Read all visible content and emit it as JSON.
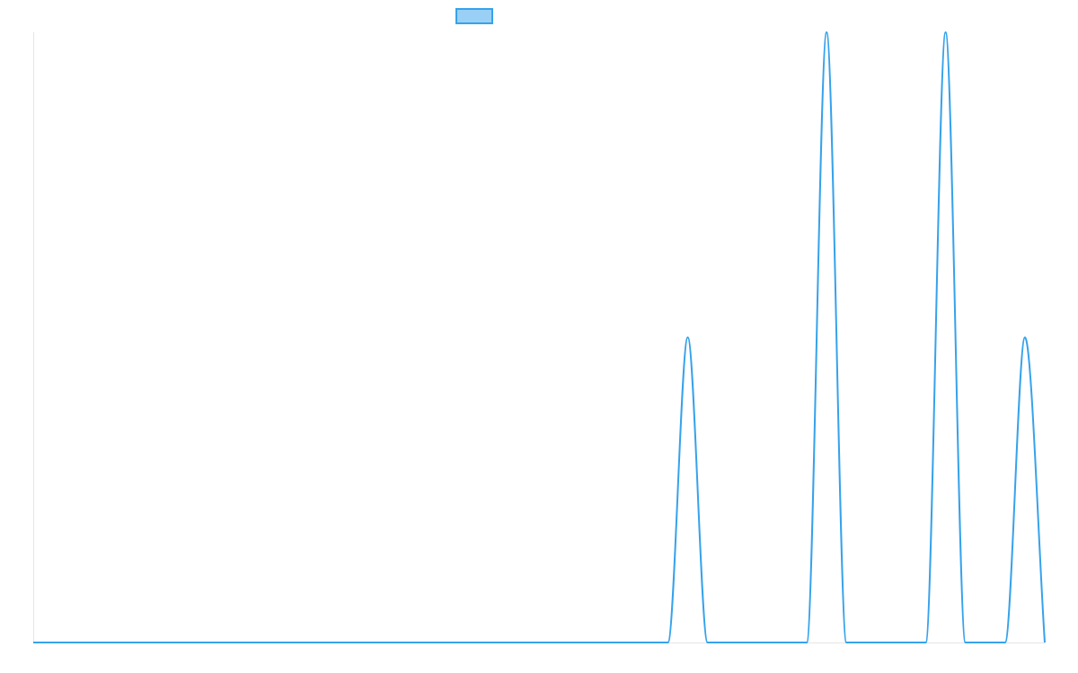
{
  "chart_data": {
    "type": "line",
    "categories": [
      null,
      null,
      null,
      null,
      null,
      null,
      null,
      null,
      null,
      null,
      null,
      null,
      null,
      null,
      null,
      null,
      null,
      null,
      null,
      null,
      null,
      null,
      null,
      null,
      null,
      null,
      null,
      null,
      null,
      null,
      null,
      null,
      null,
      null,
      null,
      null,
      null,
      null,
      null,
      null,
      null,
      null,
      null,
      null,
      null,
      null,
      null,
      null,
      null,
      null,
      null,
      null
    ],
    "series": [
      {
        "color": "#36a2eb",
        "fill": "#9ad0f5",
        "values": [
          0,
          0,
          0,
          0,
          0,
          0,
          0,
          0,
          0,
          0,
          0,
          0,
          0,
          0,
          0,
          0,
          0,
          0,
          0,
          0,
          0,
          0,
          0,
          0,
          0,
          0,
          0,
          0,
          0,
          0,
          0,
          0,
          0,
          1,
          0,
          0,
          0,
          0,
          0,
          0,
          2,
          0,
          0,
          0,
          0,
          0,
          2,
          0,
          0,
          0,
          1,
          0
        ]
      }
    ],
    "ylim": [
      0,
      2
    ],
    "legend": "top",
    "tension": "monotone"
  }
}
